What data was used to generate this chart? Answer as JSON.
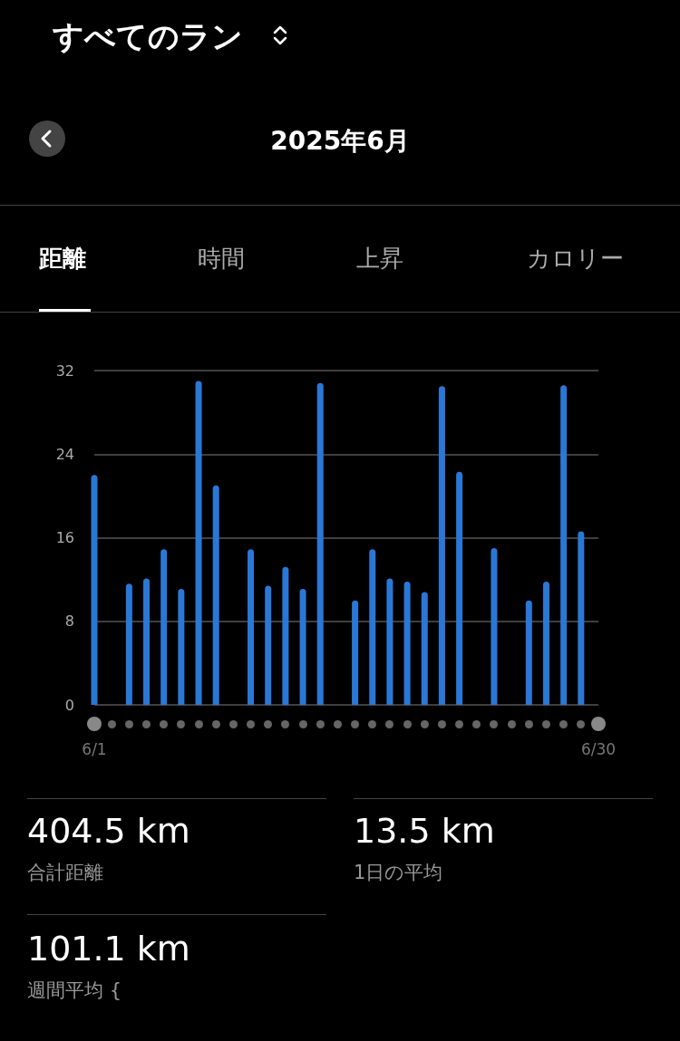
{
  "chart_data": {
    "type": "bar",
    "title": "すべてのラン",
    "subtitle": "2025年6月",
    "categories": [
      "6/1",
      null,
      null,
      null,
      null,
      null,
      null,
      null,
      null,
      null,
      null,
      null,
      null,
      null,
      null,
      null,
      null,
      null,
      null,
      null,
      null,
      null,
      null,
      null,
      null,
      null,
      null,
      null,
      null,
      "6/30"
    ],
    "values": [
      22.0,
      null,
      11.6,
      12.1,
      14.9,
      11.1,
      31.0,
      21.0,
      null,
      14.9,
      11.4,
      13.2,
      11.1,
      30.8,
      null,
      10.0,
      14.9,
      12.1,
      11.8,
      10.8,
      30.5,
      22.3,
      null,
      15.0,
      null,
      10.0,
      11.8,
      30.6,
      16.6,
      null
    ],
    "color": "#2a78d6",
    "ylim": [
      0,
      32
    ],
    "yticks": [
      0,
      8,
      16,
      24,
      32
    ],
    "grid": "y",
    "annotations": [
      "距離",
      "時間",
      "上昇",
      "カロリー",
      "404.5 km",
      "合計距離",
      "13.5 km",
      "1日の平均",
      "101.1 km",
      "週間平均 {"
    ]
  }
}
